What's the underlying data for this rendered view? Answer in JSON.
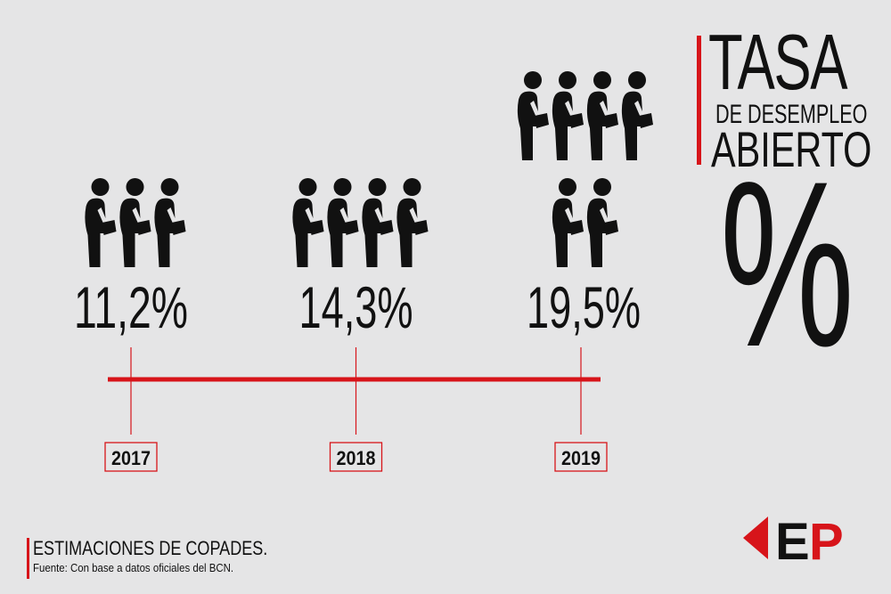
{
  "title": {
    "line1": "TASA",
    "line2": "DE DESEMPLEO",
    "line3": "ABIERTO",
    "symbol": "%"
  },
  "chart_data": {
    "type": "pictograph-timeline",
    "unit": "%",
    "categories": [
      "2017",
      "2018",
      "2019"
    ],
    "values": [
      11.2,
      14.3,
      19.5
    ],
    "value_labels": [
      "11,2%",
      "14,3%",
      "19,5%"
    ],
    "icon_counts": [
      3,
      4,
      6
    ],
    "icon": "walking-person-with-briefcase-icon"
  },
  "footer": {
    "title": "ESTIMACIONES DE COPADES.",
    "note": "Fuente: Con base a datos oficiales del BCN."
  },
  "logo": {
    "text": "EP"
  },
  "colors": {
    "background": "#e5e5e6",
    "accent": "#d7141a",
    "ink": "#111111"
  }
}
